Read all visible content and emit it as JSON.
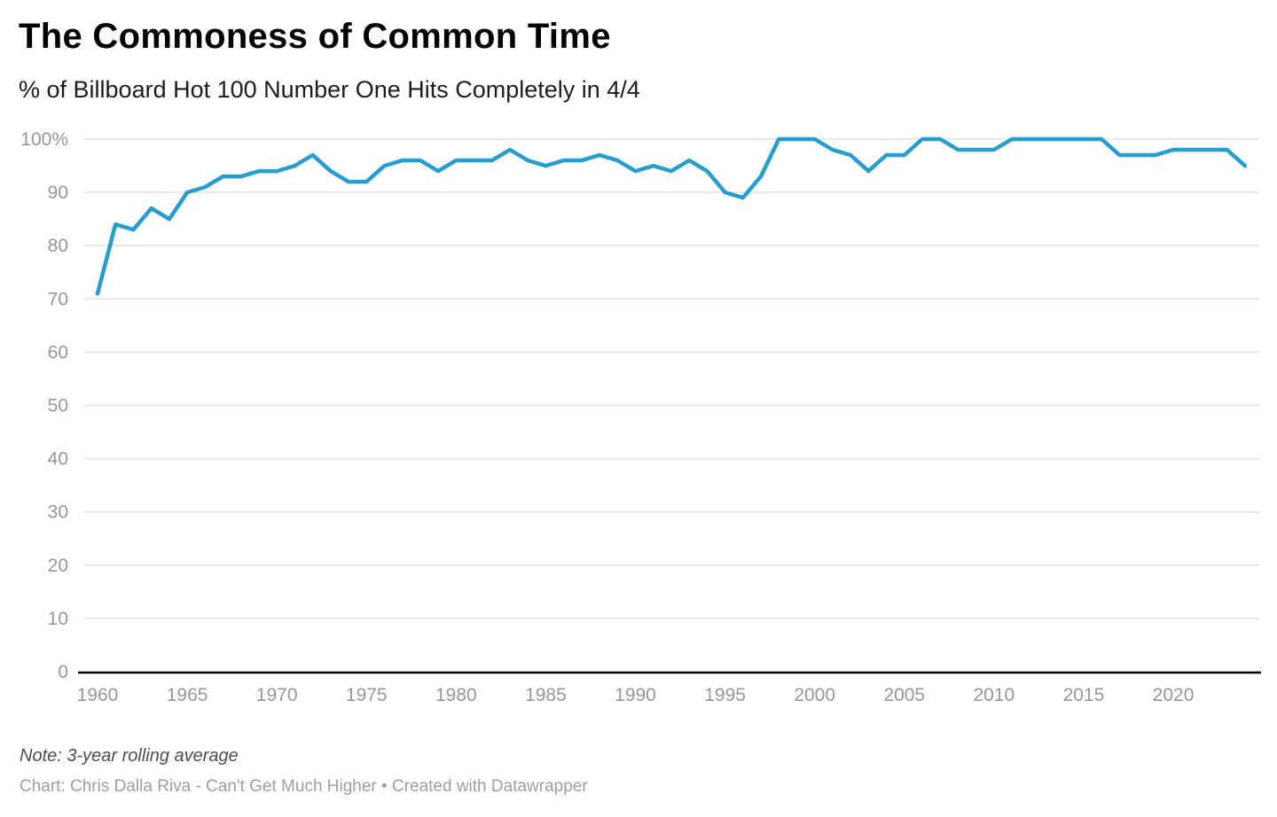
{
  "header": {
    "title": "The Commoness of Common Time",
    "subtitle": "% of Billboard Hot 100 Number One Hits Completely in 4/4"
  },
  "footer": {
    "note": "Note: 3-year rolling average",
    "credit": "Chart: Chris Dalla Riva - Can't Get Much Higher • Created with Datawrapper"
  },
  "chart_data": {
    "type": "line",
    "title": "The Commoness of Common Time",
    "subtitle": "% of Billboard Hot 100 Number One Hits Completely in 4/4",
    "xlabel": "",
    "ylabel": "",
    "x": [
      1960,
      1961,
      1962,
      1963,
      1964,
      1965,
      1966,
      1967,
      1968,
      1969,
      1970,
      1971,
      1972,
      1973,
      1974,
      1975,
      1976,
      1977,
      1978,
      1979,
      1980,
      1981,
      1982,
      1983,
      1984,
      1985,
      1986,
      1987,
      1988,
      1989,
      1990,
      1991,
      1992,
      1993,
      1994,
      1995,
      1996,
      1997,
      1998,
      1999,
      2000,
      2001,
      2002,
      2003,
      2004,
      2005,
      2006,
      2007,
      2008,
      2009,
      2010,
      2011,
      2012,
      2013,
      2014,
      2015,
      2016,
      2017,
      2018,
      2019,
      2020,
      2021,
      2022,
      2023,
      2024
    ],
    "series": [
      {
        "name": "% of Billboard Hot 100 Number One Hits Completely in 4/4",
        "values": [
          71,
          84,
          83,
          87,
          85,
          90,
          91,
          93,
          93,
          94,
          94,
          95,
          97,
          94,
          92,
          92,
          95,
          96,
          96,
          94,
          96,
          96,
          96,
          98,
          96,
          95,
          96,
          96,
          97,
          96,
          94,
          95,
          94,
          96,
          94,
          90,
          89,
          93,
          100,
          100,
          100,
          98,
          97,
          94,
          97,
          97,
          100,
          100,
          98,
          98,
          98,
          100,
          100,
          100,
          100,
          100,
          100,
          97,
          97,
          97,
          98,
          98,
          98,
          98,
          95
        ]
      }
    ],
    "xlim": [
      1960,
      2024
    ],
    "ylim": [
      0,
      100
    ],
    "yticks": [
      0,
      10,
      20,
      30,
      40,
      50,
      60,
      70,
      80,
      90,
      100
    ],
    "ytick_top_label": "100%",
    "xticks": [
      1960,
      1965,
      1970,
      1975,
      1980,
      1985,
      1990,
      1995,
      2000,
      2005,
      2010,
      2015,
      2020
    ],
    "grid": "horizontal",
    "legend_position": "none",
    "note": "Note: 3-year rolling average",
    "colors": {
      "line": "#269dce",
      "grid": "#e9e9e9",
      "axis_line": "#000000",
      "tick_label": "#979797"
    }
  }
}
